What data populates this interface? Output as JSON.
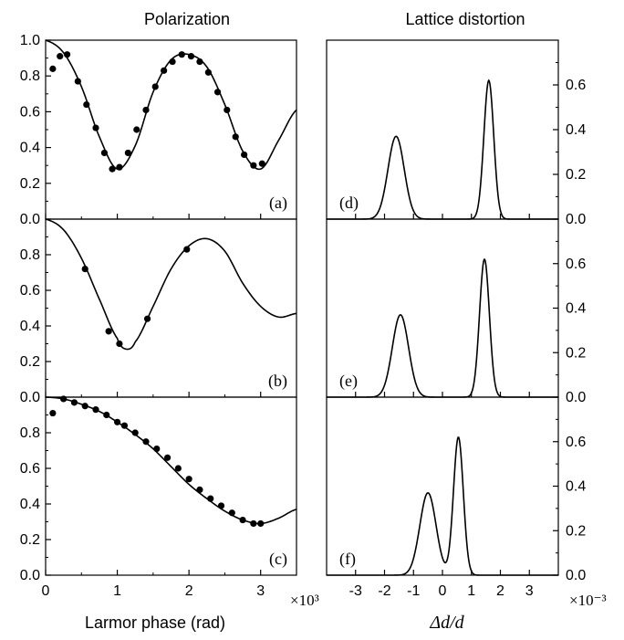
{
  "figure": {
    "left_title": "Polarization",
    "right_title": "Lattice distortion",
    "left_xlabel": "Larmor phase (rad)",
    "right_xlabel": "Δd/d",
    "left_x_multiplier": "×10³",
    "right_x_multiplier": "×10⁻³"
  },
  "chart_data": [
    {
      "type": "line",
      "panel": "a",
      "panel_label": "(a)",
      "xlim": [
        0,
        3.5
      ],
      "ylim": [
        0,
        1.0
      ],
      "xticks": [
        0,
        1,
        2,
        3
      ],
      "yticks": [
        0.0,
        0.2,
        0.4,
        0.6,
        0.8,
        1.0
      ],
      "fit_curve": {
        "x": [
          0,
          0.25,
          0.5,
          0.75,
          1.0,
          1.25,
          1.5,
          1.75,
          2.0,
          2.25,
          2.5,
          2.75,
          3.0,
          3.25,
          3.5
        ],
        "y": [
          1.0,
          0.93,
          0.74,
          0.46,
          0.28,
          0.41,
          0.71,
          0.89,
          0.92,
          0.85,
          0.64,
          0.38,
          0.28,
          0.44,
          0.61
        ]
      },
      "points": {
        "x": [
          0.1,
          0.2,
          0.3,
          0.45,
          0.57,
          0.7,
          0.82,
          0.93,
          1.03,
          1.15,
          1.27,
          1.4,
          1.53,
          1.65,
          1.77,
          1.9,
          2.03,
          2.15,
          2.27,
          2.4,
          2.53,
          2.65,
          2.77,
          2.9,
          3.02
        ],
        "y": [
          0.84,
          0.91,
          0.92,
          0.77,
          0.64,
          0.51,
          0.37,
          0.28,
          0.29,
          0.37,
          0.5,
          0.61,
          0.74,
          0.83,
          0.88,
          0.92,
          0.91,
          0.88,
          0.82,
          0.71,
          0.61,
          0.46,
          0.36,
          0.3,
          0.31
        ]
      }
    },
    {
      "type": "line",
      "panel": "b",
      "panel_label": "(b)",
      "xlim": [
        0,
        3.5
      ],
      "ylim": [
        0,
        1.0
      ],
      "xticks": [
        0,
        1,
        2,
        3
      ],
      "yticks": [
        0.0,
        0.2,
        0.4,
        0.6,
        0.8
      ],
      "fit_curve": {
        "x": [
          0,
          0.25,
          0.5,
          0.75,
          1.0,
          1.12,
          1.25,
          1.5,
          1.75,
          2.0,
          2.25,
          2.5,
          2.75,
          3.0,
          3.25,
          3.5
        ],
        "y": [
          1.0,
          0.94,
          0.78,
          0.55,
          0.33,
          0.27,
          0.31,
          0.51,
          0.72,
          0.85,
          0.89,
          0.82,
          0.64,
          0.51,
          0.45,
          0.47
        ]
      },
      "points": {
        "x": [
          0.55,
          0.88,
          1.03,
          1.42,
          1.97
        ],
        "y": [
          0.72,
          0.37,
          0.3,
          0.44,
          0.83
        ]
      }
    },
    {
      "type": "line",
      "panel": "c",
      "panel_label": "(c)",
      "xlim": [
        0,
        3.5
      ],
      "ylim": [
        0,
        1.0
      ],
      "xticks": [
        0,
        1,
        2,
        3
      ],
      "xticklabels": [
        "0",
        "1",
        "2",
        "3"
      ],
      "yticks": [
        0.0,
        0.2,
        0.4,
        0.6,
        0.8
      ],
      "fit_curve": {
        "x": [
          0,
          0.25,
          0.5,
          0.75,
          1.0,
          1.25,
          1.5,
          1.75,
          2.0,
          2.25,
          2.5,
          2.75,
          3.0,
          3.25,
          3.5
        ],
        "y": [
          1.0,
          0.99,
          0.96,
          0.92,
          0.86,
          0.79,
          0.71,
          0.61,
          0.51,
          0.43,
          0.36,
          0.31,
          0.29,
          0.32,
          0.37
        ]
      },
      "points": {
        "x": [
          0.1,
          0.25,
          0.4,
          0.55,
          0.7,
          0.85,
          1.0,
          1.1,
          1.25,
          1.4,
          1.55,
          1.7,
          1.85,
          2.0,
          2.15,
          2.3,
          2.45,
          2.6,
          2.75,
          2.9,
          3.0
        ],
        "y": [
          0.91,
          0.99,
          0.97,
          0.95,
          0.93,
          0.9,
          0.86,
          0.84,
          0.8,
          0.75,
          0.71,
          0.66,
          0.6,
          0.54,
          0.48,
          0.43,
          0.39,
          0.35,
          0.31,
          0.29,
          0.29
        ]
      }
    },
    {
      "type": "line",
      "panel": "d",
      "panel_label": "(d)",
      "xlim": [
        -4,
        4
      ],
      "ylim": [
        0,
        0.8
      ],
      "xticks": [
        -3,
        -2,
        -1,
        0,
        1,
        2,
        3
      ],
      "yticks": [
        0.0,
        0.2,
        0.4,
        0.6
      ],
      "peaks": [
        {
          "center": -1.6,
          "height": 0.37,
          "sigma": 0.28
        },
        {
          "center": 1.6,
          "height": 0.62,
          "sigma": 0.17
        }
      ]
    },
    {
      "type": "line",
      "panel": "e",
      "panel_label": "(e)",
      "xlim": [
        -4,
        4
      ],
      "ylim": [
        0,
        0.8
      ],
      "xticks": [
        -3,
        -2,
        -1,
        0,
        1,
        2,
        3
      ],
      "yticks": [
        0.0,
        0.2,
        0.4,
        0.6
      ],
      "peaks": [
        {
          "center": -1.45,
          "height": 0.37,
          "sigma": 0.28
        },
        {
          "center": 1.45,
          "height": 0.62,
          "sigma": 0.17
        }
      ]
    },
    {
      "type": "line",
      "panel": "f",
      "panel_label": "(f)",
      "xlim": [
        -4,
        4
      ],
      "ylim": [
        0,
        0.8
      ],
      "xticks": [
        -3,
        -2,
        -1,
        0,
        1,
        2,
        3
      ],
      "xticklabels": [
        "-3",
        "-2",
        "-1",
        "0",
        "1",
        "2",
        "3"
      ],
      "yticks": [
        0.0,
        0.2,
        0.4,
        0.6
      ],
      "peaks": [
        {
          "center": -0.5,
          "height": 0.37,
          "sigma": 0.28
        },
        {
          "center": 0.55,
          "height": 0.62,
          "sigma": 0.17
        }
      ]
    }
  ]
}
